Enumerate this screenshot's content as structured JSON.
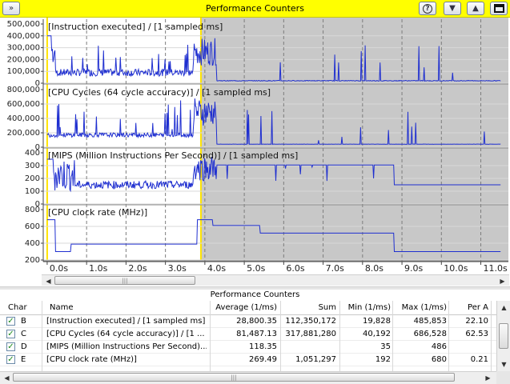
{
  "window": {
    "title": "Performance Counters"
  },
  "toolbar": {
    "expand_icon": "double-chevron-right-icon",
    "help_icon": "help-icon",
    "down_icon": "chevron-down-icon",
    "up_icon": "chevron-up-icon",
    "layout_icon": "panel-layout-icon"
  },
  "colors": {
    "accent": "#ffff00",
    "series": "#1f2fd0",
    "selection_border": "#ffe400",
    "shade": "#c8c8c8"
  },
  "chart_data": {
    "type": "line",
    "x_ticks": [
      "0.0s",
      "1.0s",
      "2.0s",
      "3.0s",
      "4.0s",
      "5.0s",
      "6.0s",
      "7.0s",
      "8.0s",
      "9.0s",
      "10.0s",
      "11.0s"
    ],
    "selection": {
      "from_s": 0.0,
      "to_s": 3.9
    },
    "x_range_s": [
      -0.1,
      11.7
    ],
    "panels": [
      {
        "label": "[Instruction executed] / [1 sampled ms]",
        "yticks": [
          "500,000",
          "400,000",
          "300,000",
          "200,000",
          "100,000",
          "0"
        ],
        "ylim": [
          0,
          500000
        ]
      },
      {
        "label": "[CPU Cycles (64 cycle accuracy)] / [1 sampled ms]",
        "yticks": [
          "800,000",
          "600,000",
          "400,000",
          "200,000",
          "0"
        ],
        "ylim": [
          0,
          800000
        ]
      },
      {
        "label": "[MIPS (Million Instructions Per Second)] / [1 sampled ms]",
        "yticks": [
          "400",
          "300",
          "200",
          "100",
          "0"
        ],
        "ylim": [
          0,
          400
        ]
      },
      {
        "label": "[CPU clock rate (MHz)]",
        "yticks": [
          "800",
          "600",
          "400",
          "200"
        ],
        "ylim": [
          200,
          800
        ]
      }
    ]
  },
  "table": {
    "title": "Performance Counters",
    "headers": [
      "Char",
      "Name",
      "Average (1/ms)",
      "Sum",
      "Min (1/ms)",
      "Max (1/ms)",
      "Per A"
    ],
    "rows": [
      {
        "checked": "✓",
        "char": "B",
        "name": "[Instruction executed] / [1 sampled ms]",
        "avg": "28,800.35",
        "sum": "112,350,172",
        "min": "19,828",
        "max": "485,853",
        "per": "22.10"
      },
      {
        "checked": "✓",
        "char": "C",
        "name": "[CPU Cycles (64 cycle accuracy)] / [1 ...",
        "avg": "81,487.13",
        "sum": "317,881,280",
        "min": "40,192",
        "max": "686,528",
        "per": "62.53"
      },
      {
        "checked": "✓",
        "char": "D",
        "name": "[MIPS (Million Instructions Per Second)...",
        "avg": "118.35",
        "sum": "",
        "min": "35",
        "max": "486",
        "per": ""
      },
      {
        "checked": "✓",
        "char": "E",
        "name": "[CPU clock rate (MHz)]",
        "avg": "269.49",
        "sum": "1,051,297",
        "min": "192",
        "max": "680",
        "per": "0.21"
      }
    ]
  },
  "scroll": {
    "grip": "|||"
  }
}
